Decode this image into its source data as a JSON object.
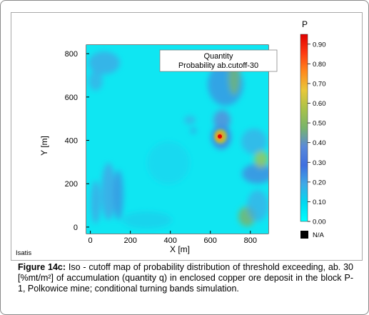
{
  "chart_data": {
    "type": "heatmap",
    "title_lines": [
      "Quantity",
      "Probability ab.cutoff-30"
    ],
    "xlabel": "X [m]",
    "ylabel": "Y [m]",
    "x_ticks": [
      "0",
      "200",
      "400",
      "600",
      "800"
    ],
    "y_ticks": [
      "0",
      "200",
      "400",
      "600",
      "800"
    ],
    "xlim": [
      -20,
      890
    ],
    "ylim": [
      -30,
      840
    ],
    "colorbar": {
      "title": "P",
      "ticks": [
        "0.00",
        "0.10",
        "0.20",
        "0.30",
        "0.40",
        "0.50",
        "0.60",
        "0.70",
        "0.80",
        "0.90"
      ],
      "range": [
        0,
        0.95
      ],
      "na_label": "N/A",
      "na_color": "#000000",
      "colors": [
        "#00ffff",
        "#00d8f0",
        "#3fa9e6",
        "#3f6fe0",
        "#5a8ad9",
        "#78b46c",
        "#a8c24a",
        "#e8c83a",
        "#ff8a1e",
        "#ff3a12",
        "#e00000"
      ]
    },
    "software_label": "Isatis",
    "features": [
      {
        "kind": "hotspot",
        "x": 610,
        "y": 425,
        "p": 0.92
      },
      {
        "kind": "hotspot",
        "x": 660,
        "y": 560,
        "p": 0.48
      },
      {
        "kind": "hotspot",
        "x": 770,
        "y": 230,
        "p": 0.42
      },
      {
        "kind": "hotspot",
        "x": 700,
        "y": 40,
        "p": 0.45
      },
      {
        "kind": "hotspot",
        "x": 90,
        "y": 730,
        "p": 0.22
      },
      {
        "kind": "hotspot",
        "x": 130,
        "y": 150,
        "p": 0.28
      }
    ]
  },
  "caption": {
    "label": "Figure 14c:",
    "text": " Iso - cutoff map of probability distribution of threshold exceeding, ab. 30 [%mt/m²] of accumulation (quantity q) in enclosed copper ore deposit in the block P-1, Polkowice mine; conditional turning bands simulation."
  }
}
